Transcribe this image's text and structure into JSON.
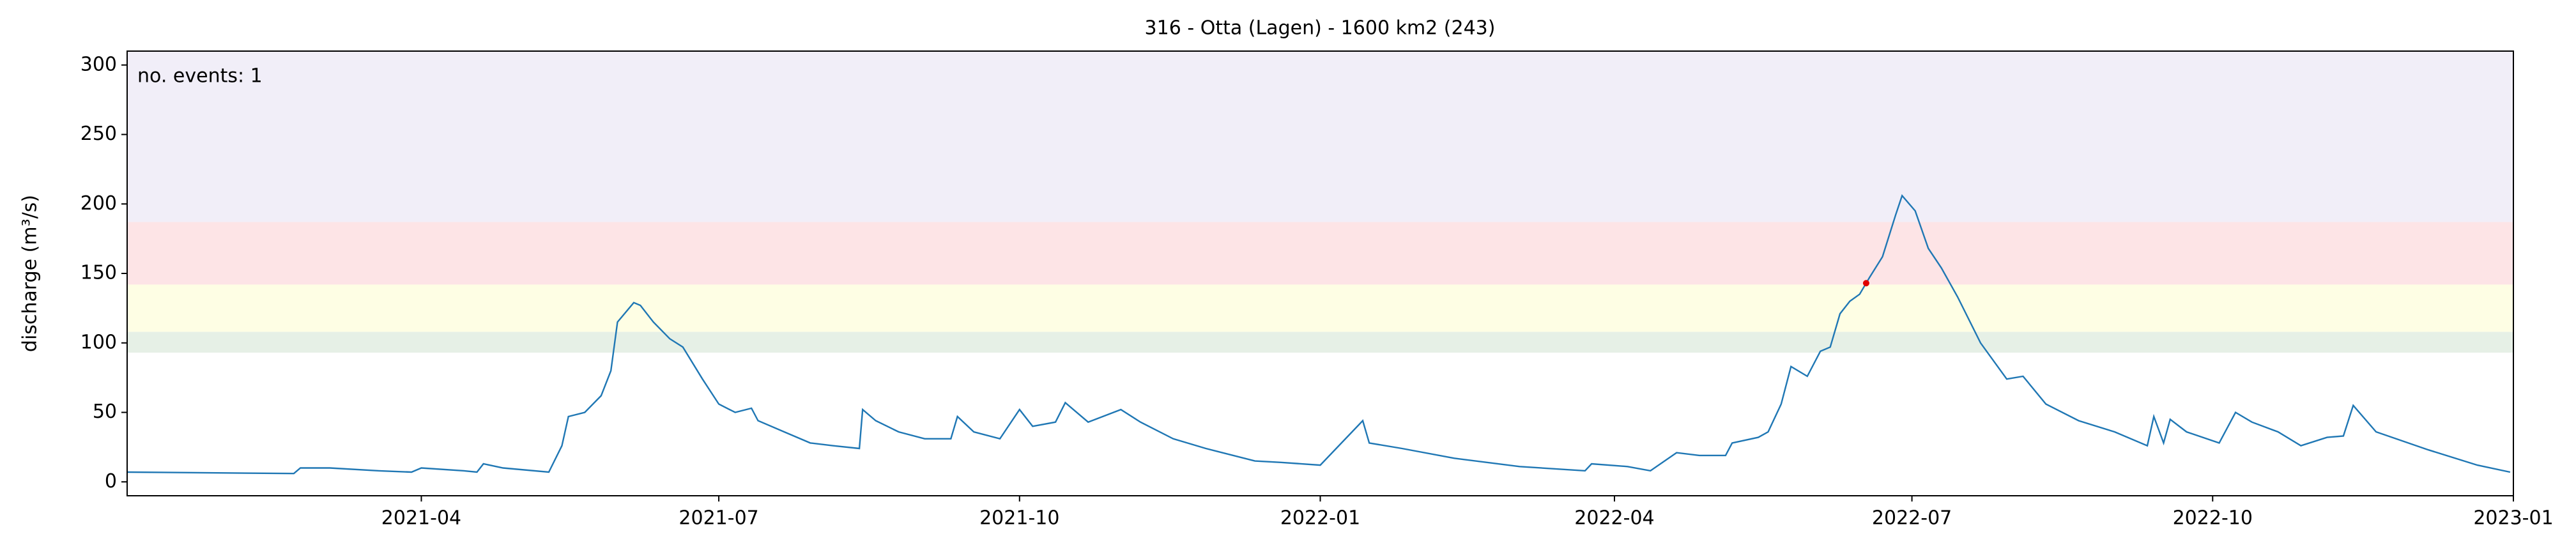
{
  "chart_data": {
    "type": "line",
    "title": "316 - Otta (Lagen) - 1600 km2 (243)",
    "ylabel": "discharge (m³/s)",
    "annotation": {
      "text": "no. events: 1",
      "color": "#e00000"
    },
    "xlim": [
      "2021-01",
      "2023-01"
    ],
    "xticks": [
      "2021-04",
      "2021-07",
      "2021-10",
      "2022-01",
      "2022-04",
      "2022-07",
      "2022-10",
      "2023-01"
    ],
    "ylim": [
      -10,
      310
    ],
    "yticks": [
      0,
      50,
      100,
      150,
      200,
      250,
      300
    ],
    "bands": [
      {
        "from": 93,
        "to": 108,
        "color": "#e6f0e6"
      },
      {
        "from": 108,
        "to": 142,
        "color": "#fefee4"
      },
      {
        "from": 142,
        "to": 187,
        "color": "#fde4e6"
      },
      {
        "from": 187,
        "to": 310,
        "color": "#f1eef8"
      }
    ],
    "events": {
      "color": "#e00000",
      "x": [
        "2022-06-17"
      ],
      "values": [
        143
      ]
    },
    "series": [
      {
        "color": "#1f77b4",
        "x": [
          "2021-01-01",
          "2021-02-21",
          "2021-02-23",
          "2021-03-04",
          "2021-03-19",
          "2021-03-29",
          "2021-04-01",
          "2021-04-14",
          "2021-04-18",
          "2021-04-20",
          "2021-04-26",
          "2021-05-10",
          "2021-05-14",
          "2021-05-16",
          "2021-05-21",
          "2021-05-26",
          "2021-05-29",
          "2021-05-31",
          "2021-06-05",
          "2021-06-07",
          "2021-06-11",
          "2021-06-16",
          "2021-06-20",
          "2021-06-26",
          "2021-07-01",
          "2021-07-06",
          "2021-07-11",
          "2021-07-13",
          "2021-07-21",
          "2021-07-29",
          "2021-08-05",
          "2021-08-13",
          "2021-08-14",
          "2021-08-18",
          "2021-08-25",
          "2021-09-02",
          "2021-09-10",
          "2021-09-12",
          "2021-09-17",
          "2021-09-25",
          "2021-10-01",
          "2021-10-05",
          "2021-10-12",
          "2021-10-15",
          "2021-10-22",
          "2021-11-01",
          "2021-11-07",
          "2021-11-17",
          "2021-11-27",
          "2021-12-12",
          "2021-12-20",
          "2022-01-01",
          "2022-01-14",
          "2022-01-16",
          "2022-01-26",
          "2022-02-11",
          "2022-03-03",
          "2022-03-23",
          "2022-03-25",
          "2022-04-05",
          "2022-04-12",
          "2022-04-20",
          "2022-04-27",
          "2022-05-05",
          "2022-05-07",
          "2022-05-15",
          "2022-05-18",
          "2022-05-22",
          "2022-05-25",
          "2022-05-30",
          "2022-06-03",
          "2022-06-06",
          "2022-06-09",
          "2022-06-12",
          "2022-06-15",
          "2022-06-18",
          "2022-06-22",
          "2022-06-26",
          "2022-06-28",
          "2022-07-02",
          "2022-07-06",
          "2022-07-10",
          "2022-07-15",
          "2022-07-22",
          "2022-07-30",
          "2022-08-04",
          "2022-08-11",
          "2022-08-21",
          "2022-09-01",
          "2022-09-11",
          "2022-09-13",
          "2022-09-16",
          "2022-09-18",
          "2022-09-23",
          "2022-10-03",
          "2022-10-08",
          "2022-10-13",
          "2022-10-21",
          "2022-10-28",
          "2022-11-05",
          "2022-11-10",
          "2022-11-13",
          "2022-11-20",
          "2022-12-06",
          "2022-12-21",
          "2022-12-31"
        ],
        "values": [
          7,
          6,
          10,
          10,
          8,
          7,
          10,
          8,
          7,
          13,
          10,
          7,
          26,
          47,
          50,
          62,
          80,
          115,
          129,
          127,
          115,
          103,
          97,
          74,
          56,
          50,
          53,
          44,
          36,
          28,
          26,
          24,
          52,
          44,
          36,
          31,
          31,
          47,
          36,
          31,
          52,
          40,
          43,
          57,
          43,
          52,
          43,
          31,
          24,
          15,
          14,
          12,
          44,
          28,
          24,
          17,
          11,
          8,
          13,
          11,
          8,
          21,
          19,
          19,
          28,
          32,
          36,
          56,
          83,
          76,
          94,
          97,
          121,
          130,
          135,
          147,
          162,
          192,
          206,
          195,
          168,
          154,
          133,
          100,
          74,
          76,
          56,
          44,
          36,
          26,
          47,
          28,
          45,
          36,
          28,
          50,
          43,
          36,
          26,
          32,
          33,
          55,
          36,
          23,
          12,
          7
        ]
      }
    ]
  }
}
